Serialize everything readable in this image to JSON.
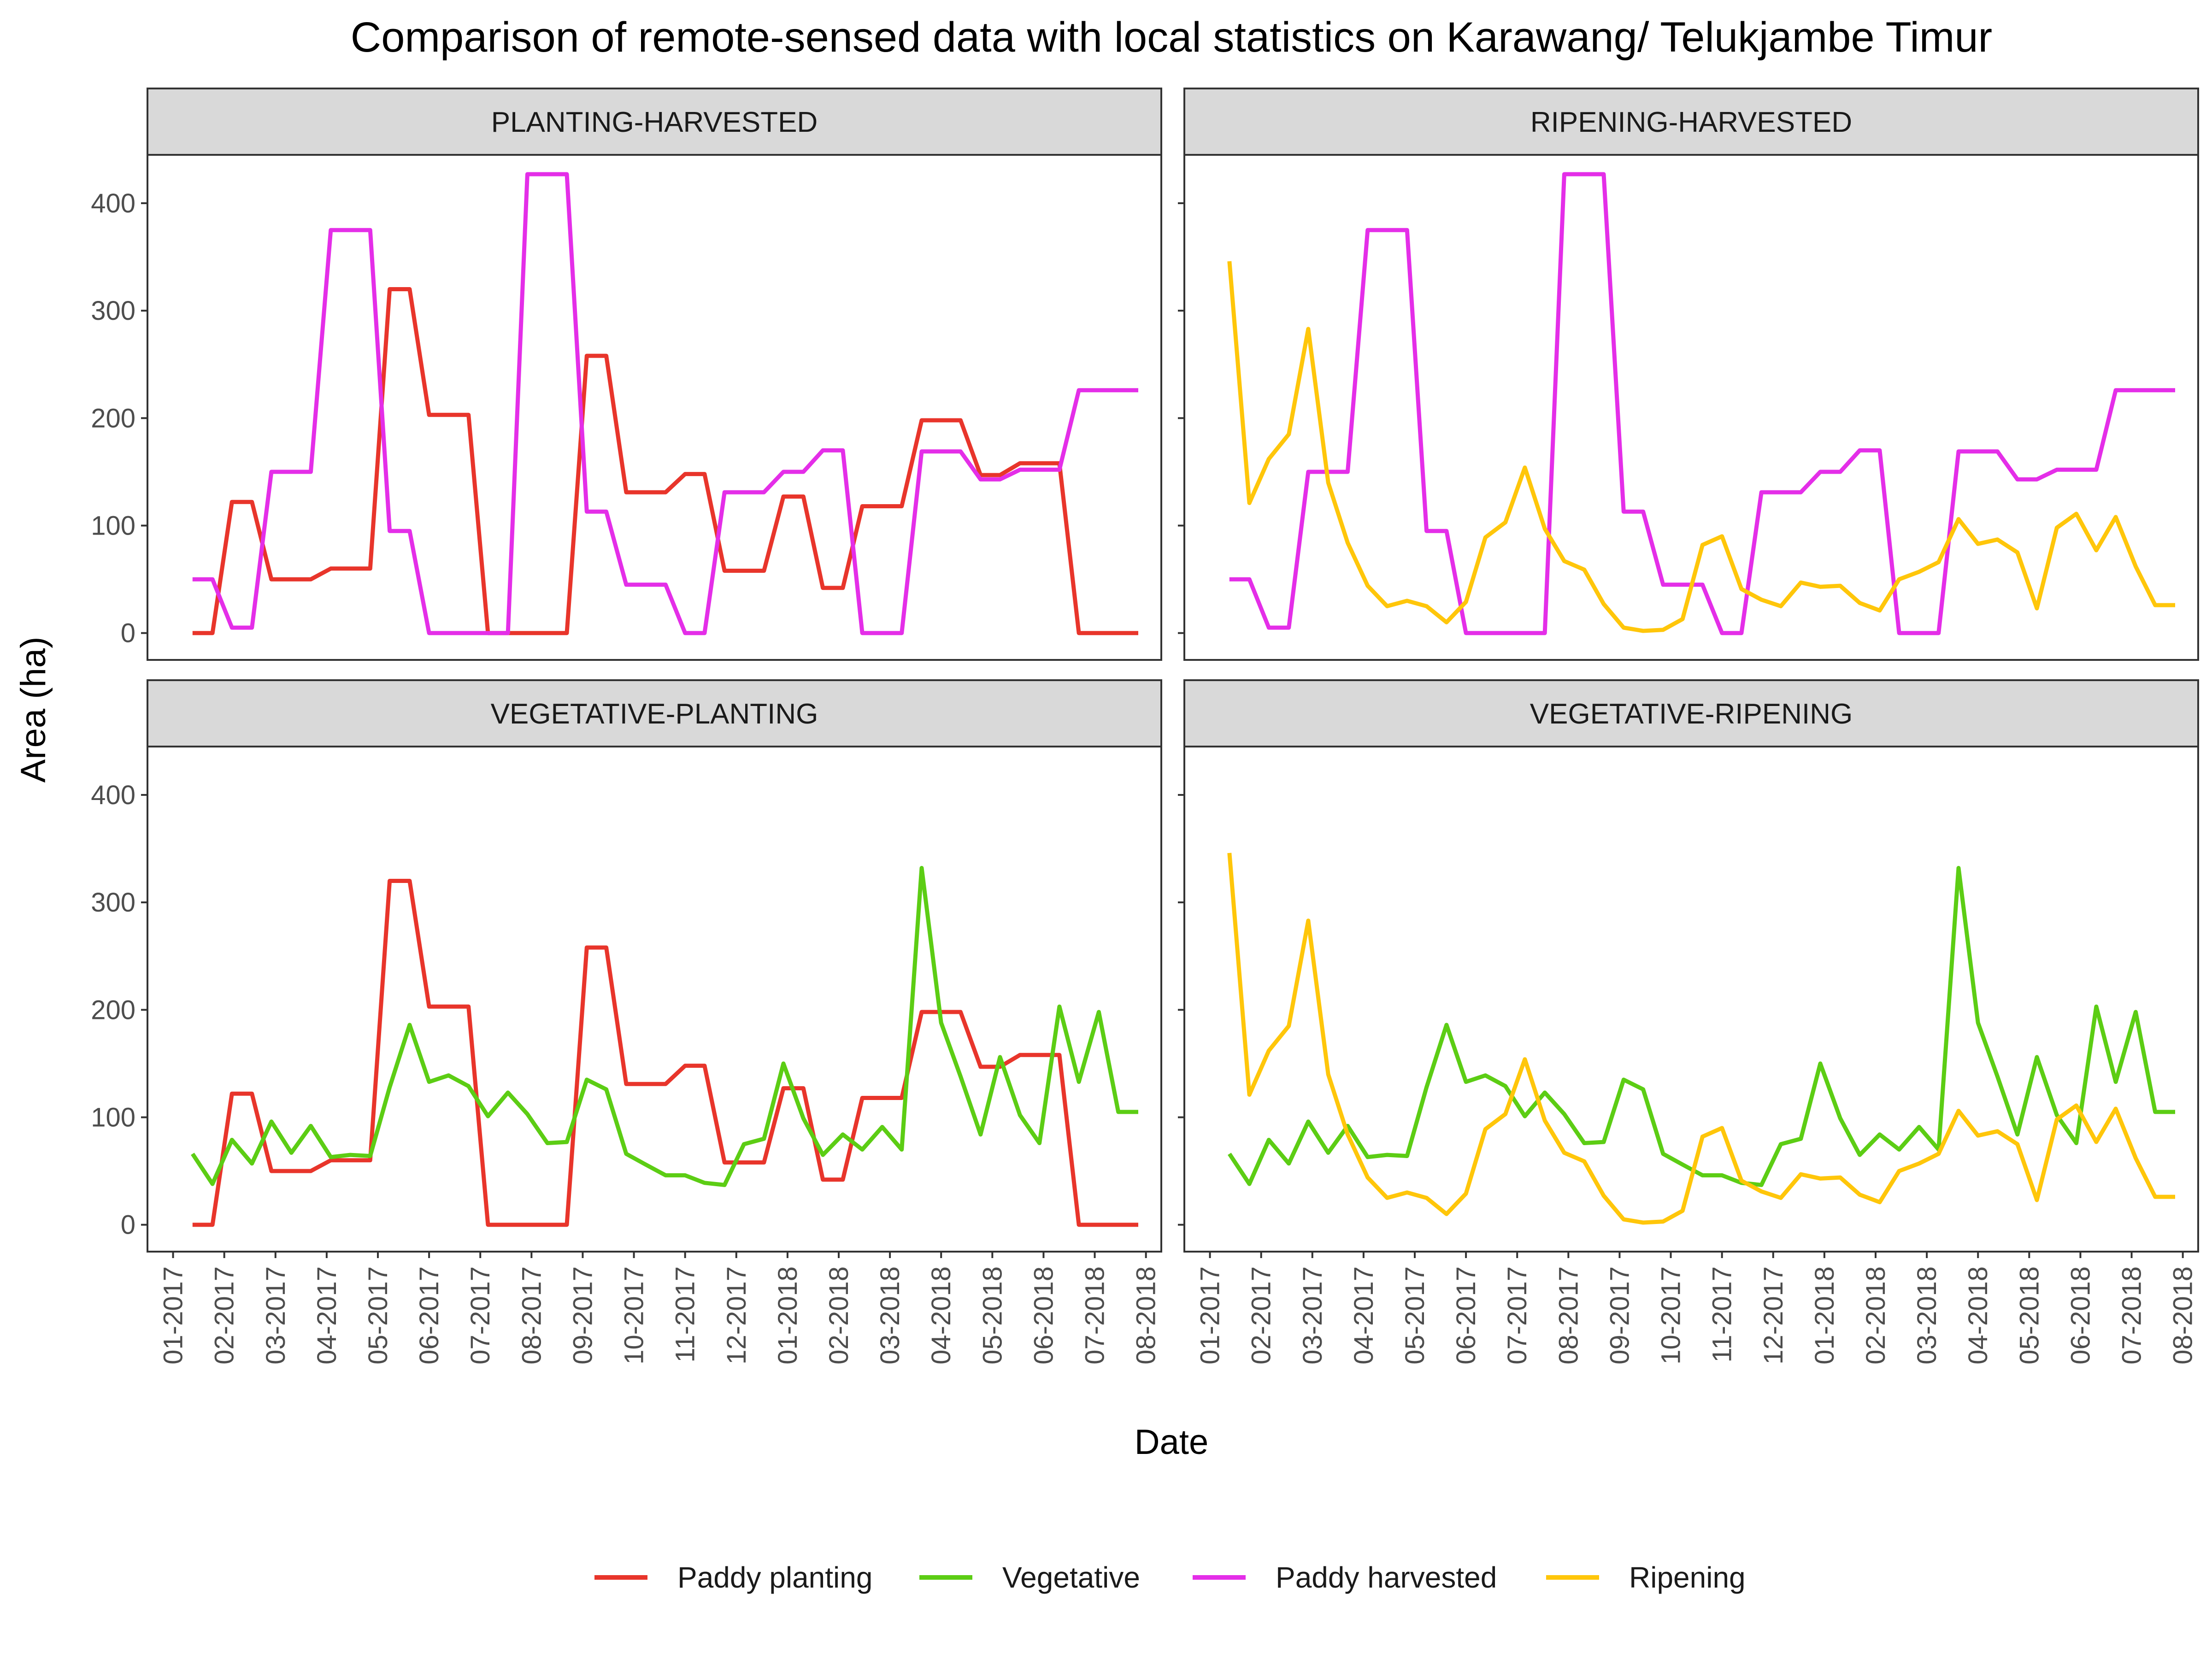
{
  "chart_data": {
    "type": "line",
    "title": "Comparison of remote-sensed data with local statistics on Karawang/ Telukjambe Timur",
    "xlabel": "Date",
    "ylabel": "Area (ha)",
    "ylim": [
      -25,
      445
    ],
    "yticks": [
      0,
      100,
      200,
      300,
      400
    ],
    "xlim": [
      -0.5,
      19.3
    ],
    "xticks": [
      "01-2017",
      "02-2017",
      "03-2017",
      "04-2017",
      "05-2017",
      "06-2017",
      "07-2017",
      "08-2017",
      "09-2017",
      "10-2017",
      "11-2017",
      "12-2017",
      "01-2018",
      "02-2018",
      "03-2018",
      "04-2018",
      "05-2018",
      "06-2018",
      "07-2018",
      "08-2018"
    ],
    "grid": false,
    "legend_position": "bottom",
    "legend": [
      {
        "name": "Paddy planting",
        "color": "#e8352b"
      },
      {
        "name": "Vegetative",
        "color": "#5ccd14"
      },
      {
        "name": "Paddy harvested",
        "color": "#e42ee8"
      },
      {
        "name": "Ripening",
        "color": "#ffc60a"
      }
    ],
    "series": [
      {
        "name": "Paddy planting",
        "color": "#e8352b",
        "x": [
          0.38,
          0.77,
          1.15,
          1.54,
          1.92,
          2.31,
          2.69,
          3.08,
          3.46,
          3.85,
          4.23,
          4.62,
          5.0,
          5.38,
          5.77,
          6.15,
          6.54,
          6.92,
          7.31,
          7.69,
          8.08,
          8.46,
          8.85,
          9.23,
          9.62,
          10.0,
          10.38,
          10.77,
          11.15,
          11.54,
          11.92,
          12.31,
          12.69,
          13.08,
          13.46,
          13.85,
          14.23,
          14.62,
          15.0,
          15.38,
          15.77,
          16.15,
          16.54,
          16.92,
          17.31,
          17.69,
          18.08,
          18.46,
          18.85
        ],
        "y": [
          0,
          0,
          122,
          122,
          50,
          50,
          50,
          60,
          60,
          60,
          320,
          320,
          203,
          203,
          203,
          0,
          0,
          0,
          0,
          0,
          258,
          258,
          131,
          131,
          131,
          148,
          148,
          58,
          58,
          58,
          127,
          127,
          42,
          42,
          118,
          118,
          118,
          198,
          198,
          198,
          147,
          147,
          158,
          158,
          158,
          0,
          0,
          0,
          0
        ]
      },
      {
        "name": "Paddy harvested",
        "color": "#e42ee8",
        "x": [
          0.38,
          0.77,
          1.15,
          1.54,
          1.92,
          2.31,
          2.69,
          3.08,
          3.46,
          3.85,
          4.23,
          4.62,
          5.0,
          5.38,
          5.77,
          6.15,
          6.54,
          6.92,
          7.31,
          7.69,
          8.08,
          8.46,
          8.85,
          9.23,
          9.62,
          10.0,
          10.38,
          10.77,
          11.15,
          11.54,
          11.92,
          12.31,
          12.69,
          13.08,
          13.46,
          13.85,
          14.23,
          14.62,
          15.0,
          15.38,
          15.77,
          16.15,
          16.54,
          16.92,
          17.31,
          17.69,
          18.08,
          18.46,
          18.85
        ],
        "y": [
          50,
          50,
          5,
          5,
          150,
          150,
          150,
          375,
          375,
          375,
          95,
          95,
          0,
          0,
          0,
          0,
          0,
          427,
          427,
          427,
          113,
          113,
          45,
          45,
          45,
          0,
          0,
          131,
          131,
          131,
          150,
          150,
          170,
          170,
          0,
          0,
          0,
          169,
          169,
          169,
          143,
          143,
          152,
          152,
          152,
          226,
          226,
          226,
          226
        ]
      },
      {
        "name": "Vegetative",
        "color": "#5ccd14",
        "x": [
          0.38,
          0.77,
          1.15,
          1.54,
          1.92,
          2.31,
          2.69,
          3.08,
          3.46,
          3.85,
          4.23,
          4.62,
          5.0,
          5.38,
          5.77,
          6.15,
          6.54,
          6.92,
          7.31,
          7.69,
          8.08,
          8.46,
          8.85,
          9.23,
          9.62,
          10.0,
          10.38,
          10.77,
          11.15,
          11.54,
          11.92,
          12.31,
          12.69,
          13.08,
          13.46,
          13.85,
          14.23,
          14.62,
          15.0,
          15.38,
          15.77,
          16.15,
          16.54,
          16.92,
          17.31,
          17.69,
          18.08,
          18.46,
          18.85
        ],
        "y": [
          66,
          38,
          79,
          57,
          96,
          67,
          92,
          63,
          65,
          64,
          128,
          186,
          133,
          139,
          129,
          101,
          123,
          103,
          76,
          77,
          135,
          126,
          66,
          56,
          46,
          46,
          39,
          37,
          75,
          80,
          150,
          99,
          65,
          84,
          70,
          91,
          70,
          332,
          188,
          138,
          84,
          156,
          102,
          76,
          203,
          133,
          198,
          105,
          105
        ]
      },
      {
        "name": "Ripening",
        "color": "#ffc60a",
        "x": [
          0.38,
          0.77,
          1.15,
          1.54,
          1.92,
          2.31,
          2.69,
          3.08,
          3.46,
          3.85,
          4.23,
          4.62,
          5.0,
          5.38,
          5.77,
          6.15,
          6.54,
          6.92,
          7.31,
          7.69,
          8.08,
          8.46,
          8.85,
          9.23,
          9.62,
          10.0,
          10.38,
          10.77,
          11.15,
          11.54,
          11.92,
          12.31,
          12.69,
          13.08,
          13.46,
          13.85,
          14.23,
          14.62,
          15.0,
          15.38,
          15.77,
          16.15,
          16.54,
          16.92,
          17.31,
          17.69,
          18.08,
          18.46,
          18.85
        ],
        "y": [
          346,
          121,
          162,
          185,
          283,
          140,
          84,
          44,
          25,
          30,
          25,
          10,
          29,
          89,
          103,
          154,
          97,
          67,
          59,
          27,
          5,
          2,
          3,
          13,
          82,
          90,
          41,
          31,
          25,
          47,
          43,
          44,
          28,
          21,
          50,
          57,
          66,
          106,
          83,
          87,
          75,
          23,
          98,
          111,
          77,
          108,
          62,
          26,
          26
        ]
      }
    ],
    "panels": [
      {
        "title": "PLANTING-HARVESTED",
        "series": [
          "Paddy planting",
          "Paddy harvested"
        ]
      },
      {
        "title": "RIPENING-HARVESTED",
        "series": [
          "Paddy harvested",
          "Ripening"
        ]
      },
      {
        "title": "VEGETATIVE-PLANTING",
        "series": [
          "Paddy planting",
          "Vegetative"
        ]
      },
      {
        "title": "VEGETATIVE-RIPENING",
        "series": [
          "Vegetative",
          "Ripening"
        ]
      }
    ]
  }
}
